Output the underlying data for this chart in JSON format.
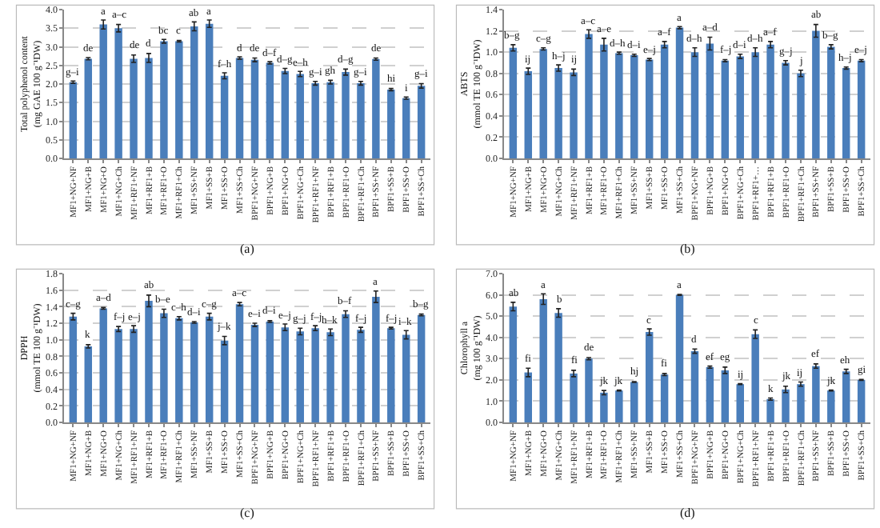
{
  "chart_data": [
    {
      "type": "bar",
      "ylabel": "Total polyphenol content (mg GAE 100 g⁻¹DW)",
      "annotations": [
        "(a)"
      ],
      "color": "#4a7ebb",
      "grid": "y",
      "categories": [
        "MF1+NG+NF",
        "MF1+NG+B",
        "MF1+NG+O",
        "MF1+NG+Ch",
        "MF1+RF1+NF",
        "MF1+RF1+B",
        "MF1+RF1+O",
        "MF1+RF1+Ch",
        "MF1+SS+NF",
        "MF1+SS+B",
        "MF1+SS+O",
        "MF1+SS+Ch",
        "BPF1+NG+NF",
        "BPF1+NG+B",
        "BPF1+NG+O",
        "BPF1+NG+Ch",
        "BPF1+RF1+NF",
        "BPF1+RF1+B",
        "BPF1+RF1+O",
        "BPF1+RF1+Ch",
        "BPF1+SS+NF",
        "BPF1+SS+B",
        "BPF1+SS+O",
        "BPF1+SS+Ch"
      ],
      "values": [
        2.05,
        2.68,
        3.6,
        3.5,
        2.68,
        2.7,
        3.15,
        3.15,
        3.55,
        3.62,
        2.22,
        2.7,
        2.65,
        2.57,
        2.35,
        2.27,
        2.02,
        2.05,
        2.32,
        2.02,
        2.67,
        1.85,
        1.62,
        1.95
      ],
      "errors": [
        0.03,
        0.03,
        0.12,
        0.1,
        0.1,
        0.12,
        0.05,
        0.02,
        0.12,
        0.1,
        0.08,
        0.03,
        0.05,
        0.03,
        0.07,
        0.07,
        0.05,
        0.05,
        0.08,
        0.05,
        0.03,
        0.03,
        0.03,
        0.06
      ],
      "value_labels": [
        "g–i",
        "de",
        "a",
        "a–c",
        "de",
        "d",
        "bc",
        "c",
        "ab",
        "a",
        "f–h",
        "d",
        "de",
        "d–f",
        "d–g",
        "e–h",
        "g–i",
        "gh",
        "d–g",
        "g–i",
        "de",
        "hi",
        "i",
        "g–i"
      ],
      "ylim": [
        0,
        4
      ],
      "yticks": [
        {
          "value": 0,
          "label": "0.0"
        },
        {
          "value": 0.5,
          "label": "0.5"
        },
        {
          "value": 1,
          "label": "1.0"
        },
        {
          "value": 1.5,
          "label": "1.5"
        },
        {
          "value": 2,
          "label": "2.0"
        },
        {
          "value": 2.5,
          "label": "2.5"
        },
        {
          "value": 3,
          "label": "3.0"
        },
        {
          "value": 3.5,
          "label": "3.5"
        },
        {
          "value": 4,
          "label": "4.0"
        }
      ]
    },
    {
      "type": "bar",
      "ylabel": "ABTS (mmol TE 100 g⁻¹DW)",
      "annotations": [
        "(b)"
      ],
      "color": "#4a7ebb",
      "grid": "y",
      "categories": [
        "MF1+NG+NF",
        "MF1+NG+B",
        "MF1+NG+O",
        "MF1+NG+Ch",
        "MF1+RF1+NF",
        "MF1+RF1+B",
        "MF1+RF1+O",
        "MF1+RF1+Ch",
        "MF1+SS+NF",
        "MF1+SS+B",
        "MF1+SS+O",
        "MF1+SS+Ch",
        "BPF1+NG+NF",
        "BPF1+NG+B",
        "BPF1+NG+O",
        "BPF1+NG+Ch",
        "BPF1+RF1+…",
        "BPF1+RF1+B",
        "BPF1+RF1+O",
        "BPF1+RF1+Ch",
        "BPF1+SS+NF",
        "BPF1+SS+B",
        "BPF1+SS+O",
        "BPF1+SS+Ch"
      ],
      "values": [
        1.04,
        0.82,
        1.03,
        0.85,
        0.81,
        1.17,
        1.07,
        0.99,
        0.97,
        0.93,
        1.07,
        1.23,
        1.0,
        1.08,
        0.92,
        0.96,
        1.0,
        1.07,
        0.9,
        0.8,
        1.2,
        1.05,
        0.85,
        0.92
      ],
      "errors": [
        0.03,
        0.03,
        0.01,
        0.03,
        0.03,
        0.04,
        0.06,
        0.01,
        0.01,
        0.01,
        0.03,
        0.01,
        0.04,
        0.06,
        0.01,
        0.02,
        0.04,
        0.03,
        0.02,
        0.03,
        0.06,
        0.02,
        0.01,
        0.01
      ],
      "value_labels": [
        "b–g",
        "ij",
        "c–g",
        "h–j",
        "ij",
        "a–c",
        "a–e",
        "d–h",
        "d–i",
        "e–j",
        "a–f",
        "a",
        "d–h",
        "a–d",
        "f–j",
        "d–i",
        "d–h",
        "a–f",
        "g–j",
        "j",
        "ab",
        "b–g",
        "h–j",
        "e–j"
      ],
      "ylim": [
        0,
        1.4
      ],
      "yticks": [
        {
          "value": 0,
          "label": "0.0"
        },
        0.2,
        0.4,
        0.6,
        0.8,
        {
          "value": 1,
          "label": "1.0"
        },
        1.2,
        1.4
      ]
    },
    {
      "type": "bar",
      "ylabel": "DPPH (mmol TE 100 g⁻¹DW)",
      "annotations": [
        "(c)"
      ],
      "color": "#4a7ebb",
      "grid": "y",
      "categories": [
        "MF1+NG+NF",
        "MF1+NG+B",
        "MF1+NG+O",
        "MF1+NG+Ch",
        "MF1+RF1+NF",
        "MF1+RF1+B",
        "MF1+RF1+O",
        "MF1+RF1+Ch",
        "MF1+SS+NF",
        "MF1+SS+B",
        "MF1+SS+O",
        "MF1+SS+Ch",
        "BPF1+NG+NF",
        "BPF1+NG+B",
        "BPF1+NG+O",
        "BPF1+NG+Ch",
        "BPF1+RF1+NF",
        "BPF1+RF1+B",
        "BPF1+RF1+O",
        "BPF1+RF1+Ch",
        "BPF1+SS+NF",
        "BPF1+SS+B",
        "BPF1+SS+O",
        "BPF1+SS+Ch"
      ],
      "values": [
        1.28,
        0.92,
        1.38,
        1.13,
        1.13,
        1.47,
        1.32,
        1.26,
        1.21,
        1.28,
        0.99,
        1.43,
        1.18,
        1.22,
        1.15,
        1.1,
        1.14,
        1.09,
        1.31,
        1.12,
        1.52,
        1.14,
        1.06,
        1.3
      ],
      "errors": [
        0.04,
        0.02,
        0.01,
        0.03,
        0.04,
        0.07,
        0.05,
        0.02,
        0.01,
        0.04,
        0.05,
        0.02,
        0.02,
        0.01,
        0.04,
        0.04,
        0.03,
        0.04,
        0.04,
        0.03,
        0.07,
        0.01,
        0.05,
        0.01
      ],
      "value_labels": [
        "c–g",
        "k",
        "a–d",
        "f–j",
        "e–j",
        "ab",
        "b–e",
        "c–h",
        "d–i",
        "c–g",
        "j–k",
        "a–c",
        "e–i",
        "d–i",
        "e–j",
        "g–j",
        "f–j",
        "h–k",
        "b–f",
        "f–j",
        "a",
        "f–j",
        "i–k",
        "b–g"
      ],
      "ylim": [
        0,
        1.8
      ],
      "yticks": [
        {
          "value": 0,
          "label": "0.0"
        },
        0.2,
        0.4,
        0.6,
        0.8,
        {
          "value": 1,
          "label": "1.0"
        },
        1.2,
        1.4,
        1.6,
        1.8
      ]
    },
    {
      "type": "bar",
      "ylabel": "Chlorophyll a (mg 100 g⁻¹DW)",
      "annotations": [
        "(d)"
      ],
      "color": "#4a7ebb",
      "grid": "y",
      "categories": [
        "MF1+NG+NF",
        "MF1+NG+B",
        "MF1+NG+O",
        "MF1+NG+Ch",
        "MF1+RF1+NF",
        "MF1+RF1+B",
        "MF1+RF1+O",
        "MF1+RF1+Ch",
        "MF1+SS+NF",
        "MF1+SS+B",
        "MF1+SS+O",
        "MF1+SS+Ch",
        "BPF1+NG+NF",
        "BPF1+NG+B",
        "BPF1+NG+O",
        "BPF1+NG+Ch",
        "BPF1+RF1+NF",
        "BPF1+RF1+B",
        "BPF1+RF1+O",
        "BPF1+RF1+Ch",
        "BPF1+SS+NF",
        "BPF1+SS+B",
        "BPF1+SS+O",
        "BPF1+SS+Ch"
      ],
      "values": [
        5.45,
        2.35,
        5.8,
        5.15,
        2.3,
        3.0,
        1.4,
        1.5,
        1.9,
        4.25,
        2.25,
        6.0,
        3.35,
        2.6,
        2.45,
        1.8,
        4.15,
        1.1,
        1.55,
        1.8,
        2.65,
        1.5,
        2.4,
        2.0
      ],
      "errors": [
        0.2,
        0.2,
        0.25,
        0.2,
        0.15,
        0.05,
        0.1,
        0.02,
        0.02,
        0.15,
        0.05,
        0.02,
        0.1,
        0.05,
        0.15,
        0.02,
        0.2,
        0.05,
        0.15,
        0.1,
        0.1,
        0.02,
        0.1,
        0.02
      ],
      "value_labels": [
        "ab",
        "fi",
        "a",
        "b",
        "fi",
        "de",
        "jk",
        "jk",
        "hj",
        "c",
        "fi",
        "a",
        "d",
        "ef",
        "eg",
        "ij",
        "c",
        "k",
        "jk",
        "ij",
        "ef",
        "jk",
        "eh",
        "gi"
      ],
      "ylim": [
        0,
        7
      ],
      "yticks": [
        {
          "value": 0,
          "label": "0.0"
        },
        {
          "value": 1,
          "label": "1.0"
        },
        {
          "value": 2,
          "label": "2.0"
        },
        {
          "value": 3,
          "label": "3.0"
        },
        {
          "value": 4,
          "label": "4.0"
        },
        {
          "value": 5,
          "label": "5.0"
        },
        {
          "value": 6,
          "label": "6.0"
        },
        {
          "value": 7,
          "label": "7.0"
        }
      ]
    }
  ]
}
